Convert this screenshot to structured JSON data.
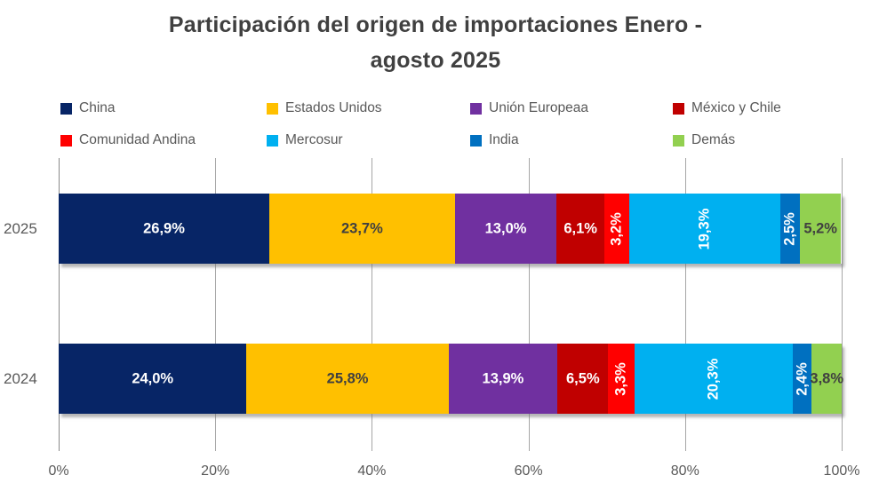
{
  "title_lines": [
    "Participación del origen de importaciones Enero -",
    "agosto 2025"
  ],
  "style": {
    "title_color": "#404040",
    "axis_text_color": "#595959",
    "grid_color": "#A6A6A6",
    "background": "#FFFFFF"
  },
  "chart_data": {
    "type": "bar",
    "orientation": "horizontal",
    "stacked": true,
    "title": "Participación del origen de importaciones Enero - agosto 2025",
    "categories": [
      "2025",
      "2024"
    ],
    "series": [
      {
        "name": "China",
        "color": "#072566",
        "values": [
          26.9,
          24.0
        ],
        "labels": [
          "26,9%",
          "24,0%"
        ],
        "label_color": "#FFFFFF",
        "label_rotated": false
      },
      {
        "name": "Estados Unidos",
        "color": "#FFC000",
        "values": [
          23.7,
          25.8
        ],
        "labels": [
          "23,7%",
          "25,8%"
        ],
        "label_color": "#404040",
        "label_rotated": false
      },
      {
        "name": "Unión Europeaa",
        "color": "#7030A0",
        "values": [
          13.0,
          13.9
        ],
        "labels": [
          "13,0%",
          "13,9%"
        ],
        "label_color": "#FFFFFF",
        "label_rotated": false
      },
      {
        "name": "México y Chile",
        "color": "#C00000",
        "values": [
          6.1,
          6.5
        ],
        "labels": [
          "6,1%",
          "6,5%"
        ],
        "label_color": "#FFFFFF",
        "label_rotated": false
      },
      {
        "name": "Comunidad Andina",
        "color": "#FF0000",
        "values": [
          3.2,
          3.3
        ],
        "labels": [
          "3,2%",
          "3,3%"
        ],
        "label_color": "#FFFFFF",
        "label_rotated": true
      },
      {
        "name": "Mercosur",
        "color": "#00B0F0",
        "values": [
          19.3,
          20.3
        ],
        "labels": [
          "19,3%",
          "20,3%"
        ],
        "label_color": "#FFFFFF",
        "label_rotated": true
      },
      {
        "name": "India",
        "color": "#0070C0",
        "values": [
          2.5,
          2.4
        ],
        "labels": [
          "2,5%",
          "2,4%"
        ],
        "label_color": "#FFFFFF",
        "label_rotated": true
      },
      {
        "name": "Demás",
        "color": "#92D050",
        "values": [
          5.2,
          3.8
        ],
        "labels": [
          "5,2%",
          "3,8%"
        ],
        "label_color": "#404040",
        "label_rotated": false
      }
    ],
    "x_ticks": [
      "0%",
      "20%",
      "40%",
      "60%",
      "80%",
      "100%"
    ],
    "xlim": [
      0,
      100
    ],
    "grid": true,
    "legend_position": "top",
    "legend_columns": 4
  }
}
